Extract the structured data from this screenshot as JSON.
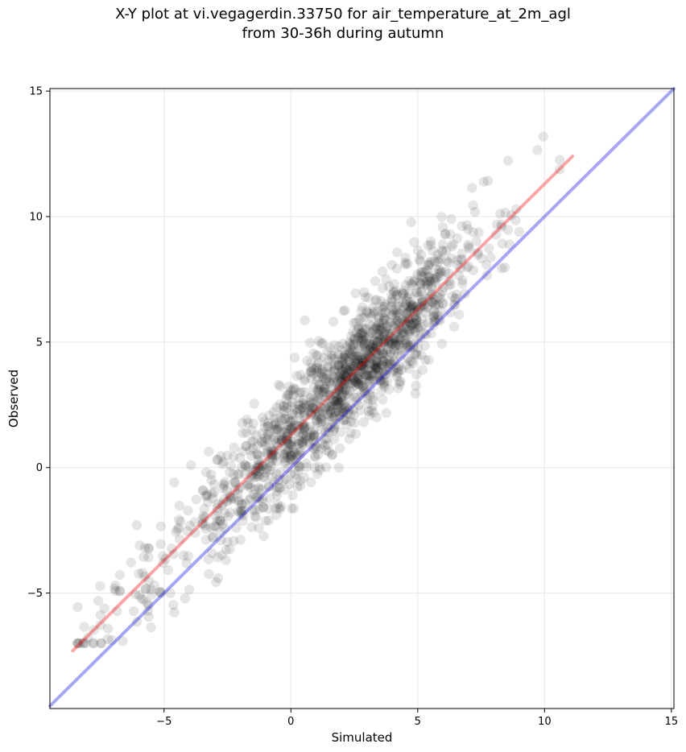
{
  "title_line1": "X-Y plot at vi.vegagerdin.33750 for air_temperature_at_2m_agl",
  "title_line2": "from 30-36h during autumn",
  "chart_data": {
    "type": "scatter",
    "title": "X-Y plot at vi.vegagerdin.33750 for air_temperature_at_2m_agl from 30-36h during autumn",
    "xlabel": "Simulated",
    "ylabel": "Observed",
    "xlim": [
      -9.5,
      15.1
    ],
    "ylim": [
      -9.6,
      15.1
    ],
    "xticks": [
      -5,
      0,
      5,
      10,
      15
    ],
    "yticks": [
      -5,
      0,
      5,
      10,
      15
    ],
    "grid": true,
    "scatter_color": "#000000",
    "scatter_alpha": 0.1,
    "series": [
      {
        "kind": "points",
        "n_points": 1500
      }
    ],
    "lines": [
      {
        "kind": "identity",
        "color": "#0000dd",
        "alpha": 0.35,
        "from": [
          -9.5,
          -9.5
        ],
        "to": [
          15.1,
          15.1
        ]
      },
      {
        "kind": "fit",
        "color": "#ee0000",
        "alpha": 0.35,
        "from": [
          -8.6,
          -7.3
        ],
        "to": [
          11.1,
          12.4
        ]
      }
    ]
  }
}
